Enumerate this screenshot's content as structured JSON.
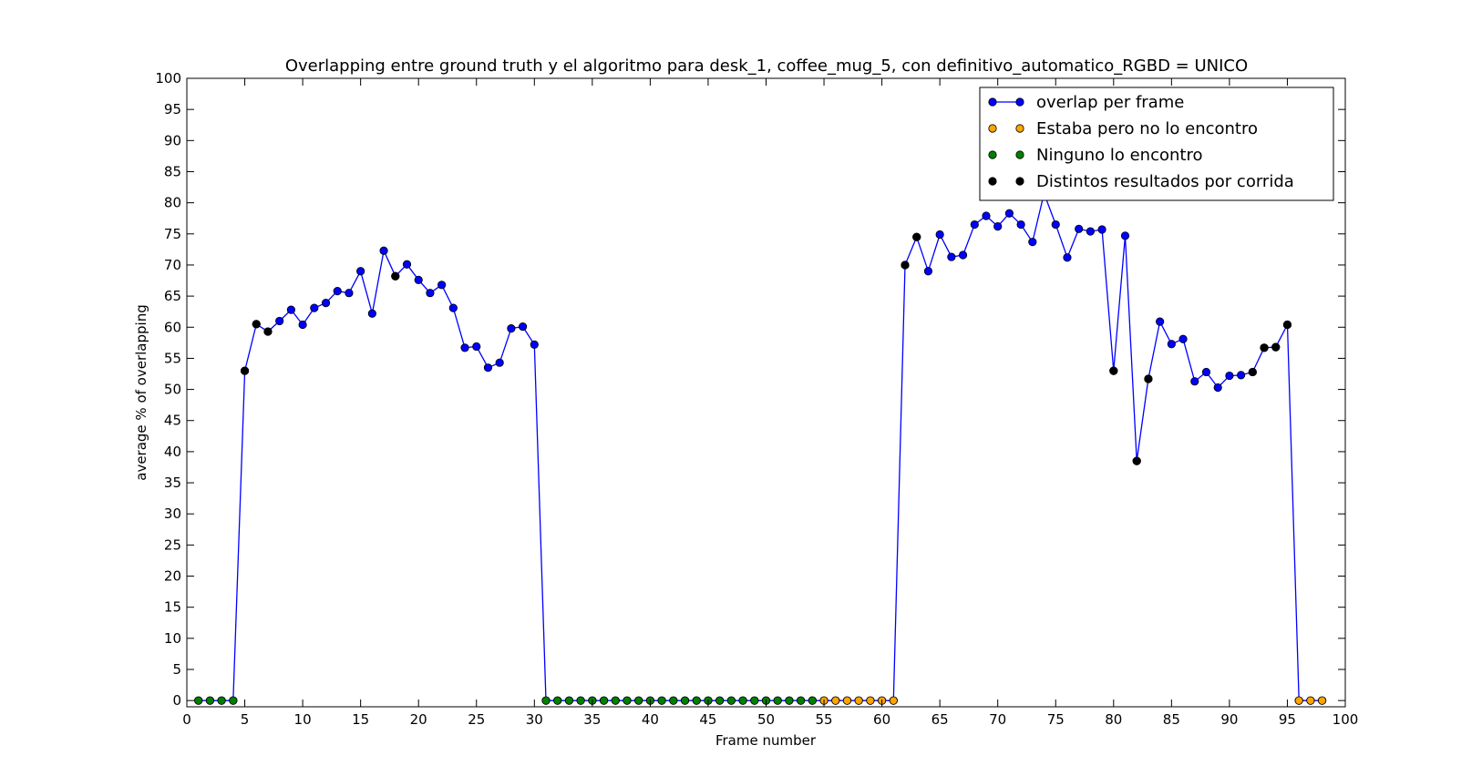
{
  "chart_data": {
    "type": "line",
    "title": "Overlapping entre ground truth y el algoritmo para desk_1, coffee_mug_5, con definitivo_automatico_RGBD = UNICO",
    "xlabel": "Frame number",
    "ylabel": "average % of overlapping",
    "xlim": [
      0,
      100
    ],
    "ylim": [
      -1,
      100
    ],
    "x_ticks": [
      0,
      5,
      10,
      15,
      20,
      25,
      30,
      35,
      40,
      45,
      50,
      55,
      60,
      65,
      70,
      75,
      80,
      85,
      90,
      95,
      100
    ],
    "y_ticks": [
      0,
      5,
      10,
      15,
      20,
      25,
      30,
      35,
      40,
      45,
      50,
      55,
      60,
      65,
      70,
      75,
      80,
      85,
      90,
      95,
      100
    ],
    "grid": false,
    "legend_position": "top-right",
    "series": [
      {
        "name": "overlap per frame",
        "color": "#0000ff",
        "marker": "circle",
        "line": true,
        "x": [
          1,
          2,
          3,
          4,
          5,
          6,
          7,
          8,
          9,
          10,
          11,
          12,
          13,
          14,
          15,
          16,
          17,
          18,
          19,
          20,
          21,
          22,
          23,
          24,
          25,
          26,
          27,
          28,
          29,
          30,
          31,
          32,
          33,
          34,
          35,
          36,
          37,
          38,
          39,
          40,
          41,
          42,
          43,
          44,
          45,
          46,
          47,
          48,
          49,
          50,
          51,
          52,
          53,
          54,
          55,
          56,
          57,
          58,
          59,
          60,
          61,
          62,
          63,
          64,
          65,
          66,
          67,
          68,
          69,
          70,
          71,
          72,
          73,
          74,
          75,
          76,
          77,
          78,
          79,
          80,
          81,
          82,
          83,
          84,
          85,
          86,
          87,
          88,
          89,
          90,
          91,
          92,
          93,
          94,
          95,
          96,
          97,
          98
        ],
        "y": [
          0,
          0,
          0,
          0,
          53,
          60.5,
          59.3,
          61,
          62.8,
          60.4,
          63.1,
          63.9,
          65.8,
          65.5,
          69,
          62.2,
          72.3,
          68.2,
          70.1,
          67.6,
          65.5,
          66.8,
          63.1,
          56.7,
          56.9,
          53.5,
          54.3,
          59.8,
          60.1,
          57.2,
          0,
          0,
          0,
          0,
          0,
          0,
          0,
          0,
          0,
          0,
          0,
          0,
          0,
          0,
          0,
          0,
          0,
          0,
          0,
          0,
          0,
          0,
          0,
          0,
          0,
          0,
          0,
          0,
          0,
          0,
          0,
          70,
          74.5,
          69,
          74.9,
          71.3,
          71.6,
          76.5,
          77.9,
          76.2,
          78.3,
          76.5,
          73.7,
          81.5,
          76.5,
          71.2,
          75.8,
          75.4,
          75.7,
          53,
          74.7,
          38.5,
          51.7,
          60.9,
          57.3,
          58.1,
          51.3,
          52.8,
          50.3,
          52.2,
          52.3,
          52.8,
          56.7,
          56.8,
          60.4,
          0,
          0,
          0
        ]
      },
      {
        "name": "Estaba pero no lo encontro",
        "color": "#ffa500",
        "marker": "circle",
        "line": false,
        "x": [
          55,
          56,
          57,
          58,
          59,
          60,
          61,
          96,
          97,
          98
        ],
        "y": [
          0,
          0,
          0,
          0,
          0,
          0,
          0,
          0,
          0,
          0
        ]
      },
      {
        "name": "Ninguno lo encontro",
        "color": "#008000",
        "marker": "circle",
        "line": false,
        "x": [
          1,
          2,
          3,
          4,
          31,
          32,
          33,
          34,
          35,
          36,
          37,
          38,
          39,
          40,
          41,
          42,
          43,
          44,
          45,
          46,
          47,
          48,
          49,
          50,
          51,
          52,
          53,
          54
        ],
        "y": [
          0,
          0,
          0,
          0,
          0,
          0,
          0,
          0,
          0,
          0,
          0,
          0,
          0,
          0,
          0,
          0,
          0,
          0,
          0,
          0,
          0,
          0,
          0,
          0,
          0,
          0,
          0,
          0
        ]
      },
      {
        "name": "Distintos resultados por corrida",
        "color": "#000000",
        "marker": "circle",
        "line": false,
        "x": [
          5,
          6,
          7,
          18,
          62,
          63,
          80,
          82,
          83,
          92,
          93,
          94,
          95
        ],
        "y": [
          53,
          60.5,
          59.3,
          68.2,
          70,
          74.5,
          53,
          38.5,
          51.7,
          52.8,
          56.7,
          56.8,
          60.4
        ]
      }
    ]
  }
}
